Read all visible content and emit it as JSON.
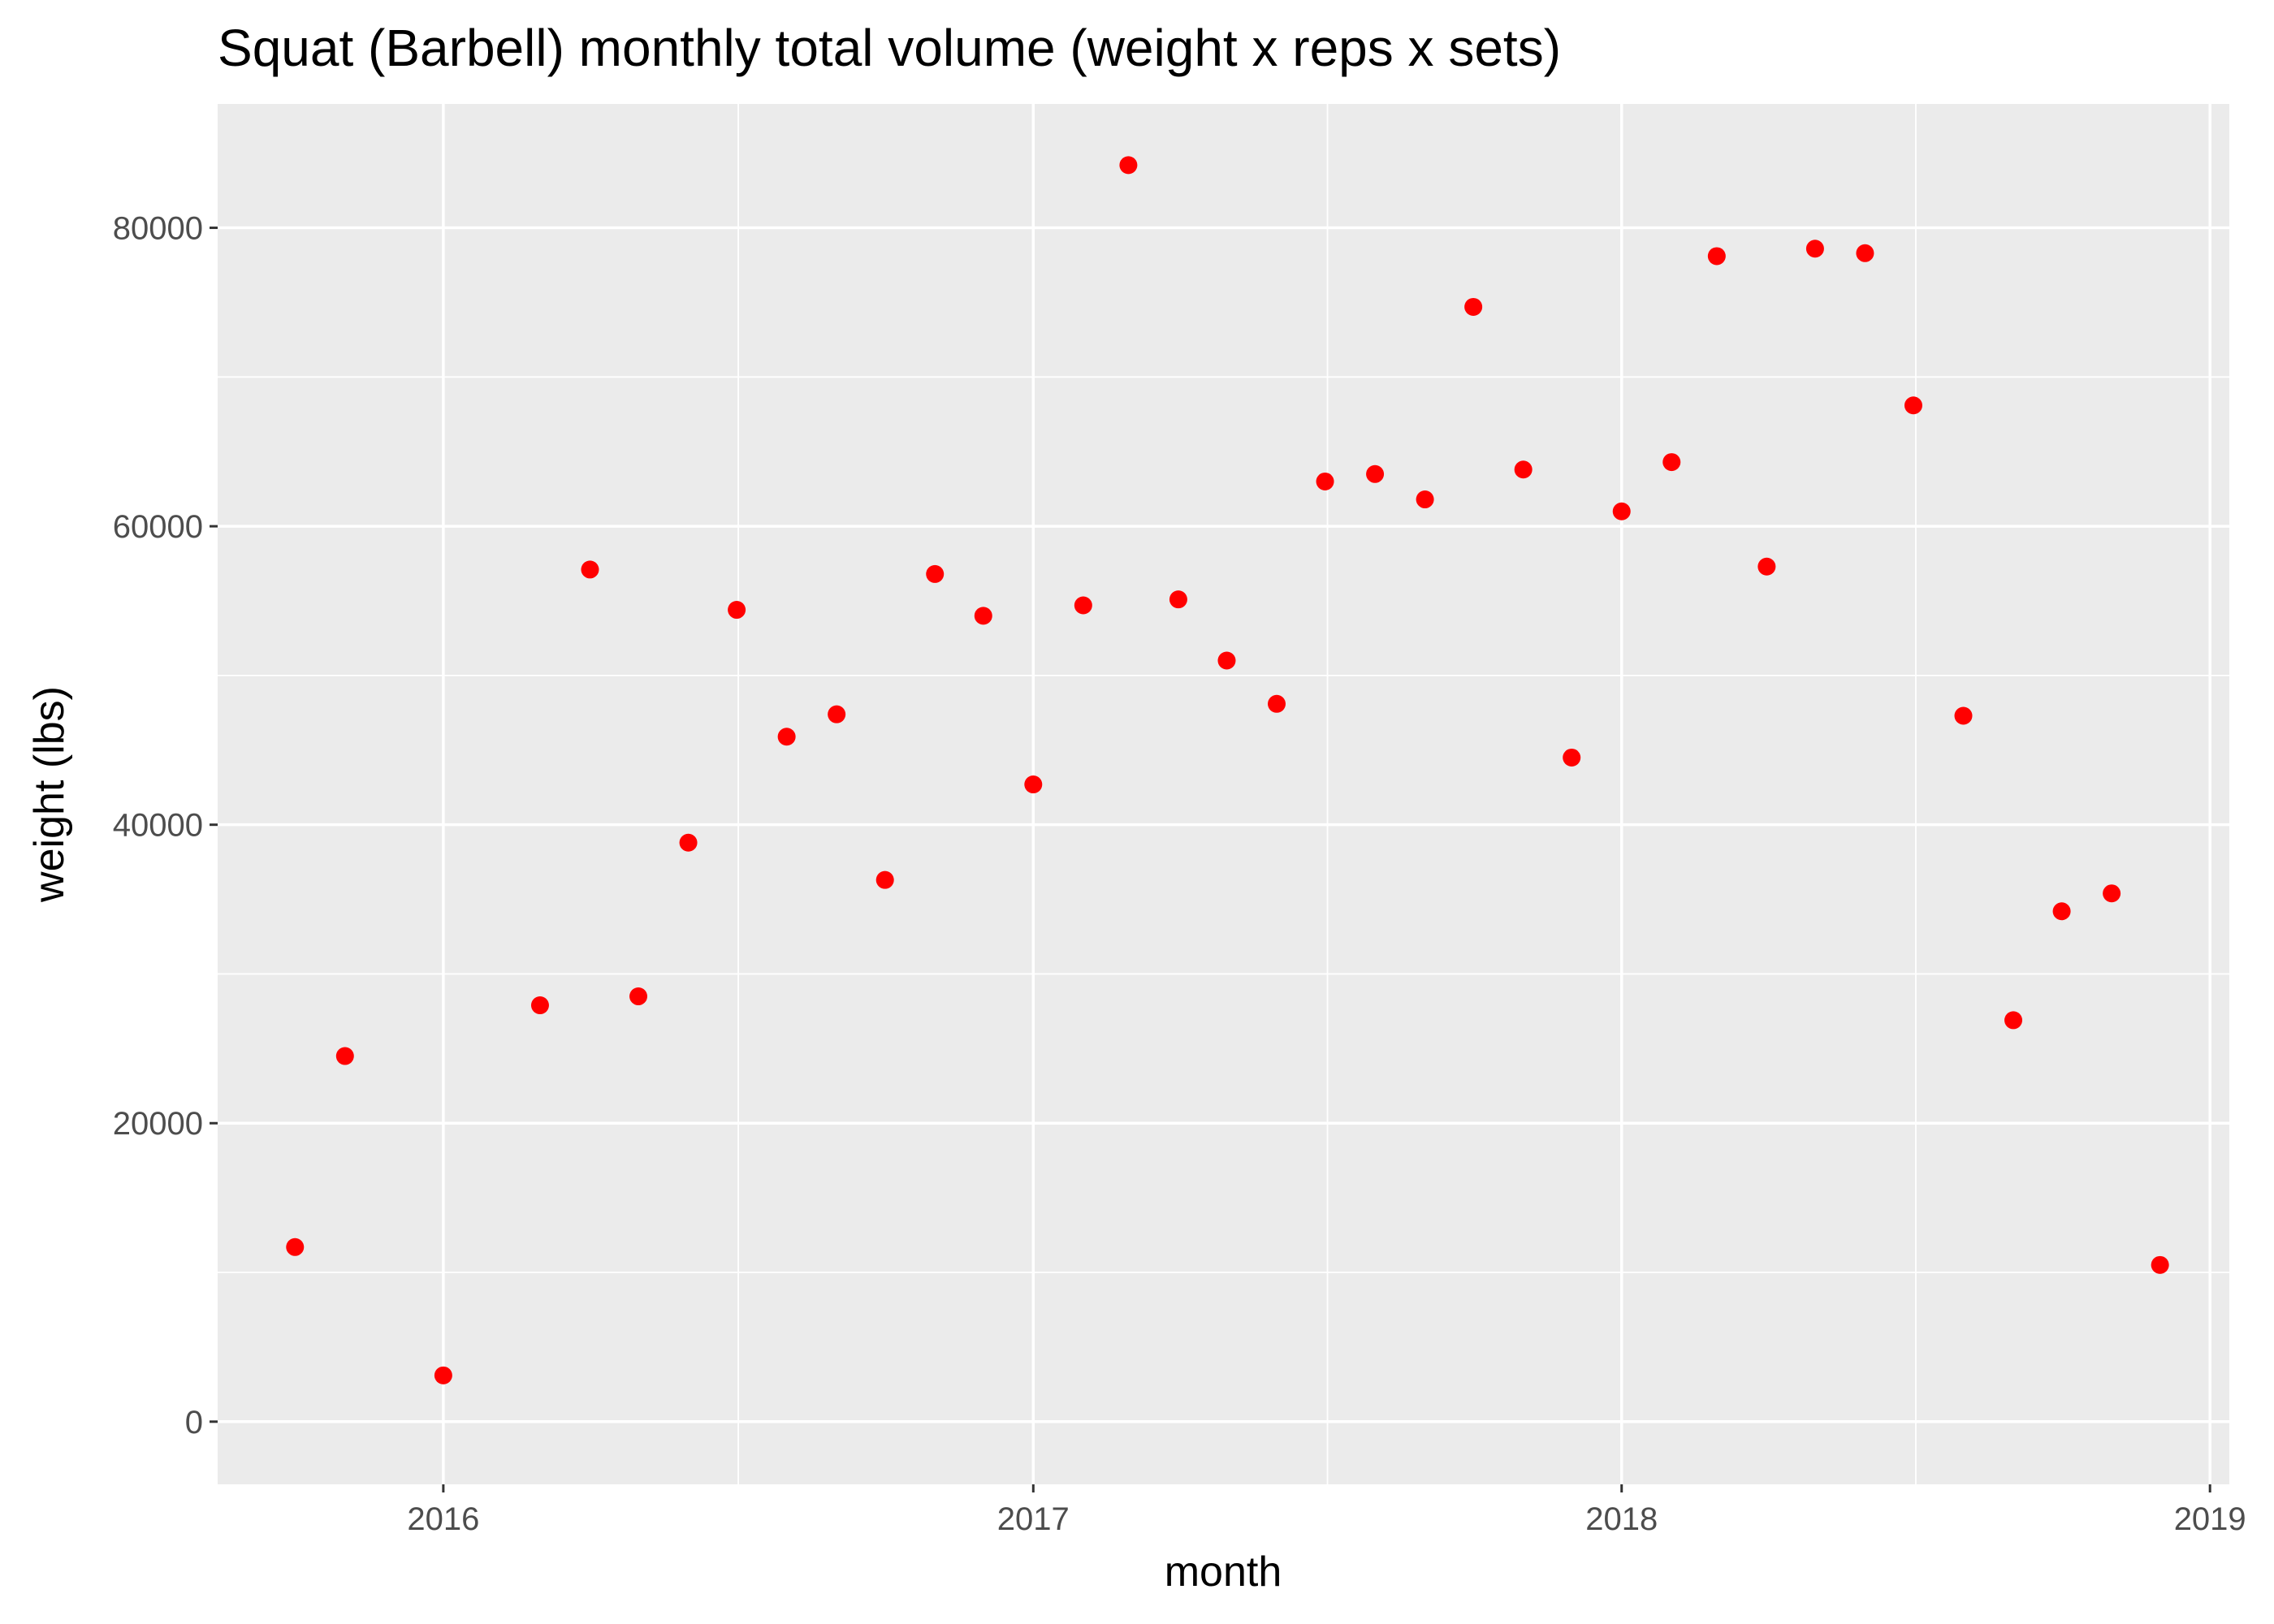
{
  "chart_data": {
    "type": "scatter",
    "title": "Squat (Barbell) monthly total volume (weight x reps x sets)",
    "xlabel": "month",
    "ylabel": "weight (lbs)",
    "x_axis_type": "date",
    "xlim": [
      "2015-08-14",
      "2019-01-13"
    ],
    "ylim": [
      -4200,
      88300
    ],
    "x_ticks": [
      "2016-01-01",
      "2017-01-01",
      "2018-01-01",
      "2019-01-01"
    ],
    "x_tick_labels": [
      "2016",
      "2017",
      "2018",
      "2019"
    ],
    "y_ticks": [
      0,
      20000,
      40000,
      60000,
      80000
    ],
    "y_tick_labels": [
      "0",
      "20000",
      "40000",
      "60000",
      "80000"
    ],
    "grid": true,
    "background_color": "#ebebeb",
    "grid_color": "#ffffff",
    "point_color": "#ff0000",
    "series": [
      {
        "x": [
          "2015-10-01",
          "2015-11-01",
          "2016-01-01",
          "2016-03-01",
          "2016-04-01",
          "2016-05-01",
          "2016-06-01",
          "2016-07-01",
          "2016-08-01",
          "2016-09-01",
          "2016-10-01",
          "2016-11-01",
          "2016-12-01",
          "2017-01-01",
          "2017-02-01",
          "2017-03-01",
          "2017-04-01",
          "2017-05-01",
          "2017-06-01",
          "2017-07-01",
          "2017-08-01",
          "2017-09-01",
          "2017-10-01",
          "2017-11-01",
          "2017-12-01",
          "2018-01-01",
          "2018-02-01",
          "2018-03-01",
          "2018-04-01",
          "2018-05-01",
          "2018-06-01",
          "2018-07-01",
          "2018-08-01",
          "2018-09-01",
          "2018-10-01",
          "2018-11-01",
          "2018-12-01"
        ],
        "y": [
          11700,
          24500,
          3100,
          27900,
          57100,
          28500,
          38800,
          54400,
          45900,
          47400,
          36300,
          56800,
          54000,
          42700,
          54700,
          84200,
          55100,
          51000,
          48100,
          63000,
          63500,
          61800,
          74700,
          63800,
          44500,
          61000,
          64300,
          78100,
          57300,
          78600,
          78300,
          68100,
          47300,
          26900,
          34200,
          35400,
          10500
        ]
      }
    ]
  }
}
